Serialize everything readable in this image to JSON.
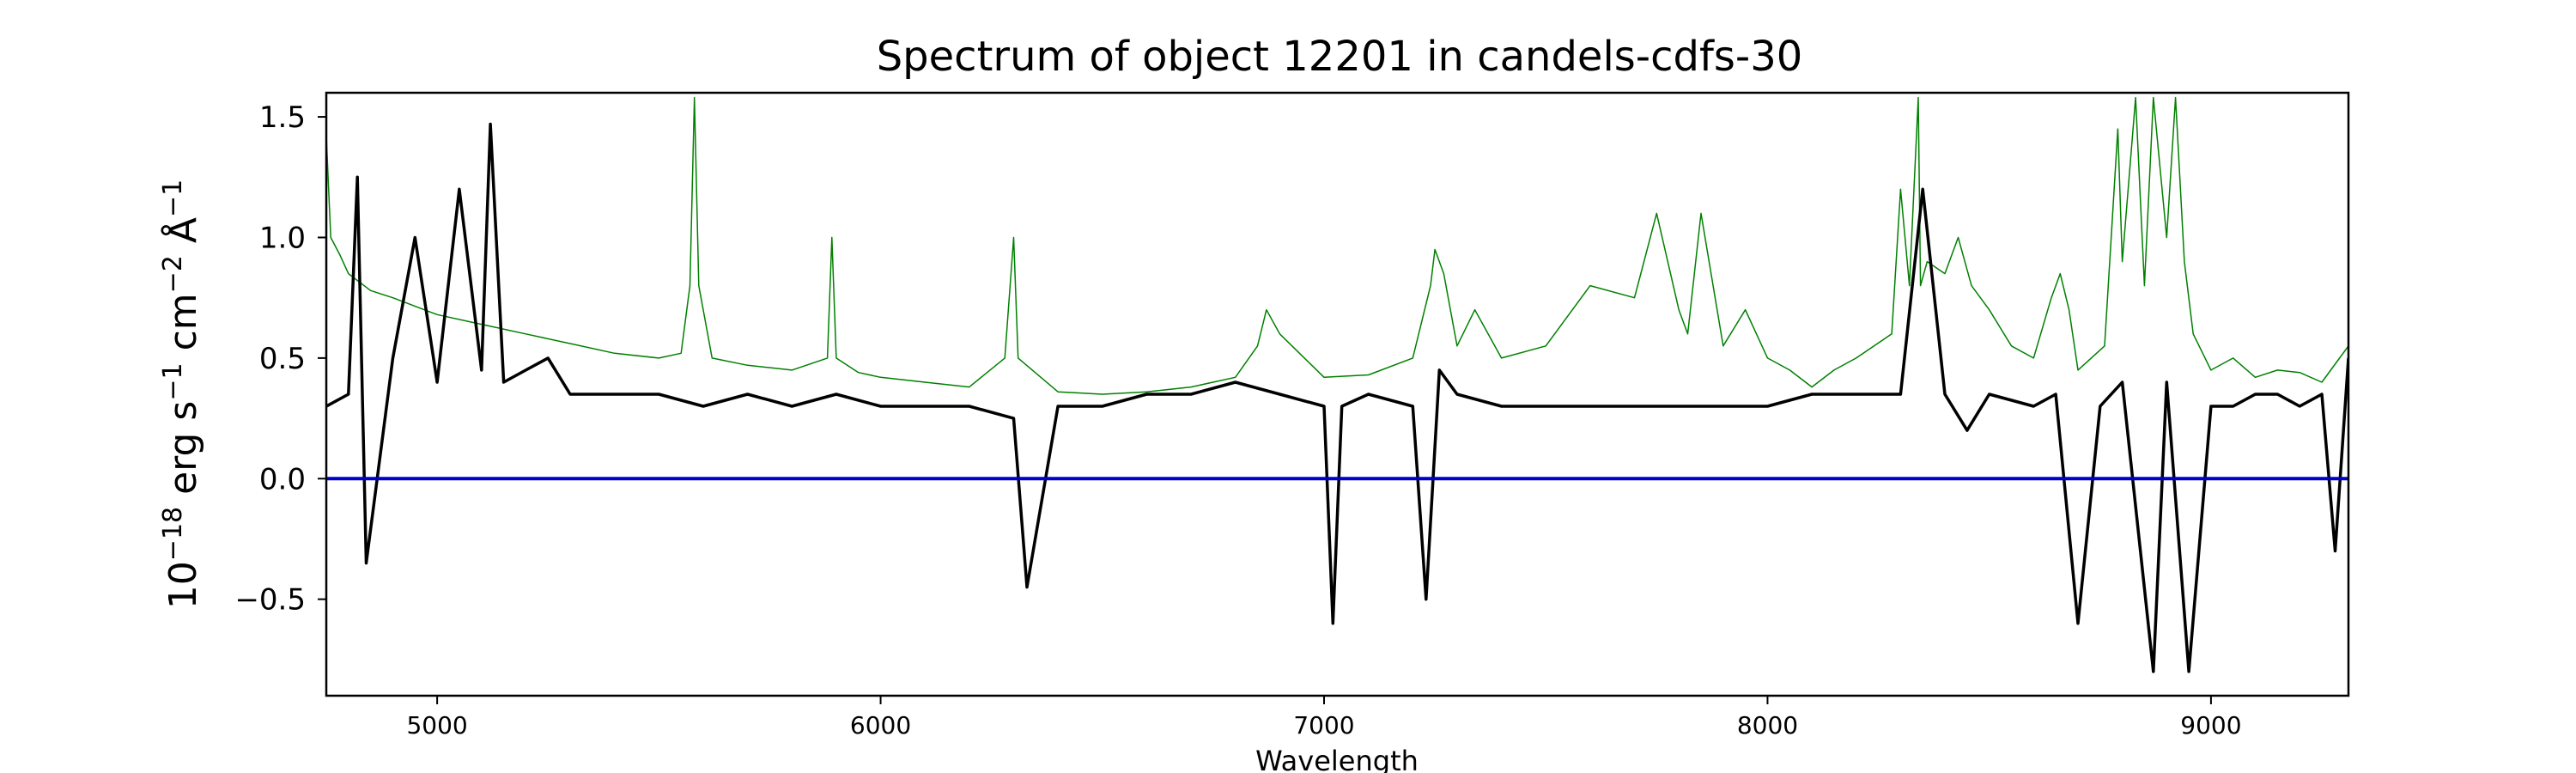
{
  "chart_data": {
    "type": "line",
    "title": "Spectrum of object 12201 in candels-cdfs-30",
    "xlabel": "Wavelength",
    "ylabel": {
      "base": "10",
      "exp_base": "−18",
      "unit1": " erg s",
      "exp1": "−1",
      "unit2": " cm",
      "exp2": "−2",
      "unit3": " Å",
      "exp3": "−1"
    },
    "xlim": [
      4750,
      9310
    ],
    "ylim": [
      -0.9,
      1.6
    ],
    "xticks": [
      {
        "value": 5000,
        "label": "5000"
      },
      {
        "value": 6000,
        "label": "6000"
      },
      {
        "value": 7000,
        "label": "7000"
      },
      {
        "value": 8000,
        "label": "8000"
      },
      {
        "value": 9000,
        "label": "9000"
      }
    ],
    "yticks": [
      {
        "value": -0.5,
        "label": "−0.5"
      },
      {
        "value": 0.0,
        "label": "0.0"
      },
      {
        "value": 0.5,
        "label": "0.5"
      },
      {
        "value": 1.0,
        "label": "1.0"
      },
      {
        "value": 1.5,
        "label": "1.5"
      }
    ],
    "grid": false,
    "series": [
      {
        "color": "#008000",
        "role": "error",
        "x": [
          4750,
          4760,
          4780,
          4800,
          4850,
          4900,
          5000,
          5100,
          5200,
          5300,
          5400,
          5500,
          5550,
          5570,
          5580,
          5590,
          5620,
          5700,
          5800,
          5880,
          5890,
          5900,
          5950,
          6000,
          6100,
          6200,
          6280,
          6300,
          6310,
          6400,
          6500,
          6600,
          6700,
          6800,
          6850,
          6870,
          6900,
          7000,
          7100,
          7200,
          7240,
          7250,
          7270,
          7300,
          7340,
          7400,
          7500,
          7600,
          7700,
          7750,
          7800,
          7820,
          7850,
          7900,
          7950,
          8000,
          8050,
          8100,
          8150,
          8200,
          8280,
          8300,
          8320,
          8340,
          8345,
          8360,
          8400,
          8430,
          8460,
          8500,
          8550,
          8600,
          8640,
          8660,
          8680,
          8700,
          8760,
          8790,
          8800,
          8830,
          8850,
          8870,
          8900,
          8920,
          8940,
          8960,
          9000,
          9050,
          9100,
          9150,
          9200,
          9250,
          9310
        ],
        "y": [
          1.42,
          1.0,
          0.93,
          0.85,
          0.78,
          0.75,
          0.68,
          0.64,
          0.6,
          0.56,
          0.52,
          0.5,
          0.52,
          0.8,
          1.58,
          0.8,
          0.5,
          0.47,
          0.45,
          0.5,
          1.0,
          0.5,
          0.44,
          0.42,
          0.4,
          0.38,
          0.5,
          1.0,
          0.5,
          0.36,
          0.35,
          0.36,
          0.38,
          0.42,
          0.55,
          0.7,
          0.6,
          0.42,
          0.43,
          0.5,
          0.8,
          0.95,
          0.85,
          0.55,
          0.7,
          0.5,
          0.55,
          0.8,
          0.75,
          1.1,
          0.7,
          0.6,
          1.1,
          0.55,
          0.7,
          0.5,
          0.45,
          0.38,
          0.45,
          0.5,
          0.6,
          1.2,
          0.8,
          1.58,
          0.8,
          0.9,
          0.85,
          1.0,
          0.8,
          0.7,
          0.55,
          0.5,
          0.75,
          0.85,
          0.7,
          0.45,
          0.55,
          1.45,
          0.9,
          1.58,
          0.8,
          1.58,
          1.0,
          1.58,
          0.9,
          0.6,
          0.45,
          0.5,
          0.42,
          0.45,
          0.44,
          0.4,
          0.55
        ]
      },
      {
        "color": "#000000",
        "role": "flux",
        "x": [
          4750,
          4800,
          4820,
          4840,
          4900,
          4950,
          5000,
          5050,
          5100,
          5120,
          5150,
          5200,
          5250,
          5300,
          5400,
          5500,
          5600,
          5700,
          5800,
          5900,
          6000,
          6100,
          6200,
          6300,
          6330,
          6400,
          6500,
          6600,
          6700,
          6800,
          6900,
          7000,
          7020,
          7040,
          7100,
          7200,
          7230,
          7260,
          7300,
          7400,
          7500,
          7600,
          7700,
          7800,
          7900,
          8000,
          8100,
          8200,
          8300,
          8350,
          8400,
          8450,
          8500,
          8600,
          8650,
          8700,
          8750,
          8800,
          8870,
          8900,
          8950,
          9000,
          9050,
          9100,
          9150,
          9200,
          9250,
          9280,
          9310
        ],
        "y": [
          0.3,
          0.35,
          1.25,
          -0.35,
          0.5,
          1.0,
          0.4,
          1.2,
          0.45,
          1.47,
          0.4,
          0.45,
          0.5,
          0.35,
          0.35,
          0.35,
          0.3,
          0.35,
          0.3,
          0.35,
          0.3,
          0.3,
          0.3,
          0.25,
          -0.45,
          0.3,
          0.3,
          0.35,
          0.35,
          0.4,
          0.35,
          0.3,
          -0.6,
          0.3,
          0.35,
          0.3,
          -0.5,
          0.45,
          0.35,
          0.3,
          0.3,
          0.3,
          0.3,
          0.3,
          0.3,
          0.3,
          0.35,
          0.35,
          0.35,
          1.2,
          0.35,
          0.2,
          0.35,
          0.3,
          0.35,
          -0.6,
          0.3,
          0.4,
          -0.8,
          0.4,
          -0.8,
          0.3,
          0.3,
          0.35,
          0.35,
          0.3,
          0.35,
          -0.3,
          0.5
        ]
      },
      {
        "color": "#0000cc",
        "role": "zero",
        "x": [
          4750,
          9310
        ],
        "y": [
          0,
          0
        ]
      }
    ]
  }
}
